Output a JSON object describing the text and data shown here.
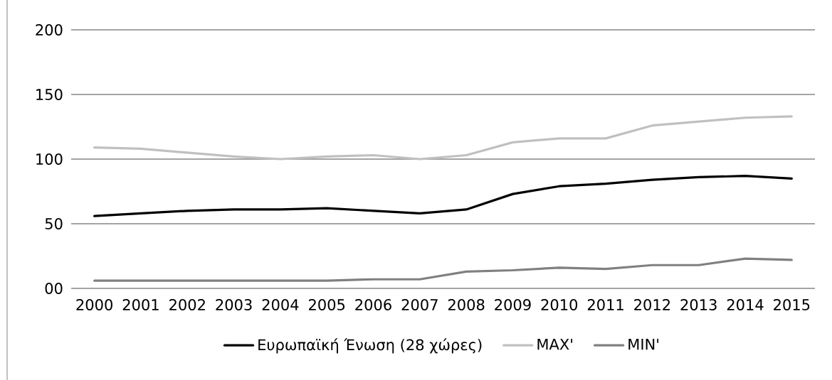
{
  "chart_data": {
    "type": "line",
    "categories": [
      "2000",
      "2001",
      "2002",
      "2003",
      "2004",
      "2005",
      "2006",
      "2007",
      "2008",
      "2009",
      "2010",
      "2011",
      "2012",
      "2013",
      "2014",
      "2015"
    ],
    "series": [
      {
        "name": "Ευρωπαϊκή Ένωση (28 χώρες)",
        "color": "#000000",
        "values": [
          56,
          58,
          60,
          61,
          61,
          62,
          60,
          58,
          61,
          73,
          79,
          81,
          84,
          86,
          87,
          85
        ]
      },
      {
        "name": "MAX'",
        "color": "#c0c0c0",
        "values": [
          109,
          108,
          105,
          102,
          100,
          102,
          103,
          100,
          103,
          113,
          116,
          116,
          126,
          129,
          132,
          133
        ]
      },
      {
        "name": "MIN'",
        "color": "#808080",
        "values": [
          6,
          6,
          6,
          6,
          6,
          6,
          7,
          7,
          13,
          14,
          16,
          15,
          18,
          18,
          23,
          22
        ]
      }
    ],
    "ylim": [
      0,
      200
    ],
    "yticks": [
      {
        "value": 0,
        "label": "00"
      },
      50,
      100,
      150,
      200
    ],
    "grid": "y",
    "legend": "bottom",
    "marker": "none",
    "line_style": "solid"
  }
}
